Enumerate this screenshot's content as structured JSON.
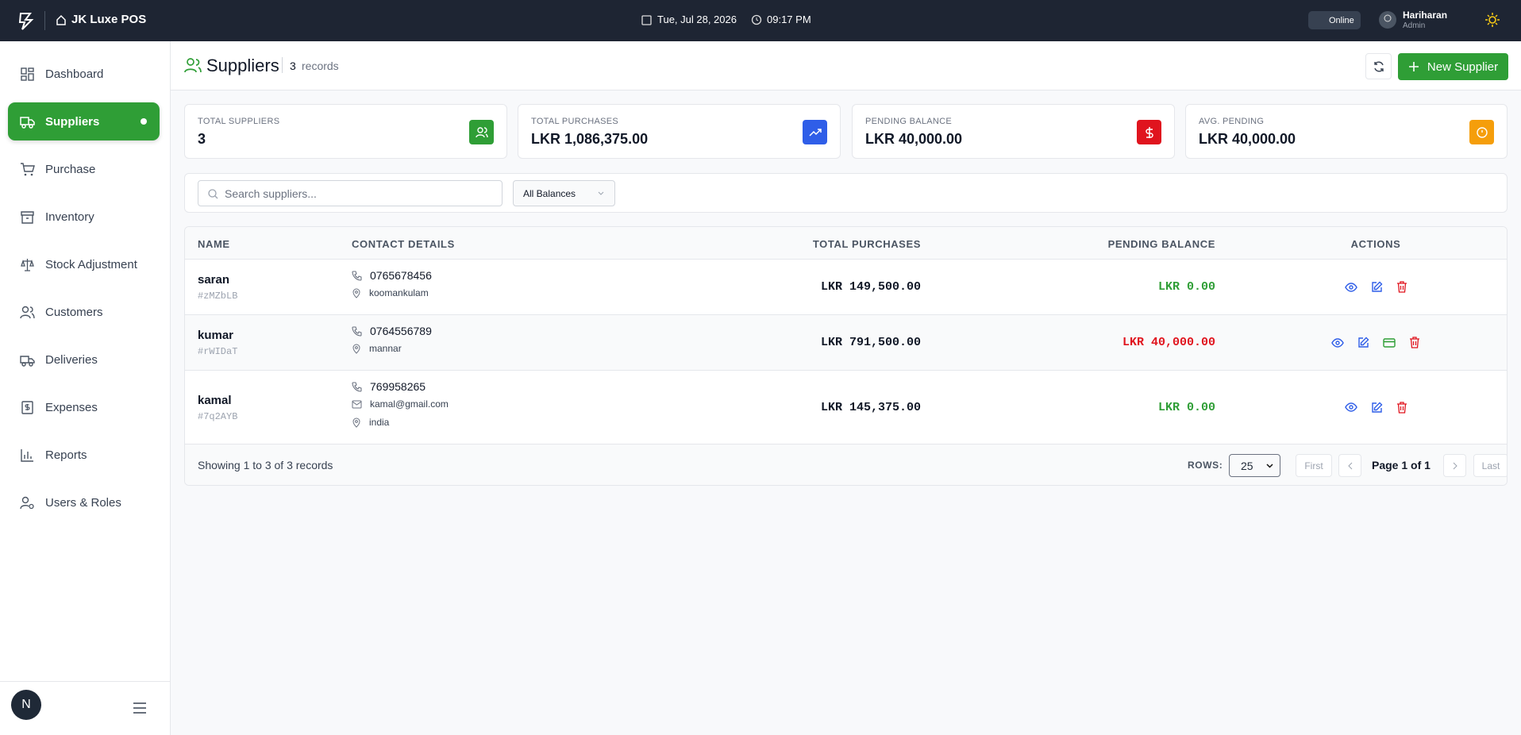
{
  "topbar": {
    "app_name": "JK Luxe POS",
    "date": "Tue, Jul 28, 2026",
    "time": "09:17 PM",
    "status": "Online",
    "user": {
      "name": "Hariharan",
      "role": "Admin"
    }
  },
  "sidebar": {
    "items": [
      "Dashboard",
      "Suppliers",
      "Purchase",
      "Inventory",
      "Stock Adjustment",
      "Customers",
      "Deliveries",
      "Expenses",
      "Reports",
      "Users & Roles"
    ],
    "avatar": "N"
  },
  "header": {
    "title": "Suppliers",
    "count": 3,
    "count_label": "records",
    "new_button": "New Supplier"
  },
  "stats": [
    {
      "label": "TOTAL SUPPLIERS",
      "value": "3"
    },
    {
      "label": "TOTAL PURCHASES",
      "value": "LKR 1,086,375.00"
    },
    {
      "label": "PENDING BALANCE",
      "value": "LKR 40,000.00"
    },
    {
      "label": "AVG. PENDING",
      "value": "LKR 40,000.00"
    }
  ],
  "filters": {
    "search_placeholder": "Search suppliers...",
    "balance_filter": "All Balances"
  },
  "table": {
    "columns": [
      "NAME",
      "CONTACT DETAILS",
      "TOTAL PURCHASES",
      "PENDING BALANCE",
      "ACTIONS"
    ],
    "rows": [
      {
        "name": "saran",
        "code": "#zMZbLB",
        "phone": "0765678456",
        "location": "koomankulam",
        "total_purchases": "LKR 149,500.00",
        "pending_balance": "LKR 0.00"
      },
      {
        "name": "kumar",
        "code": "#rWIDaT",
        "phone": "0764556789",
        "location": "mannar",
        "total_purchases": "LKR 791,500.00",
        "pending_balance": "LKR 40,000.00"
      },
      {
        "name": "kamal",
        "code": "#7q2AYB",
        "phone": "769958265",
        "email": "kamal@gmail.com",
        "location": "india",
        "total_purchases": "LKR 145,375.00",
        "pending_balance": "LKR 0.00"
      }
    ]
  },
  "pagination": {
    "summary": "Showing 1 to 3 of 3 records",
    "rows_label": "ROWS:",
    "rows_value": "25",
    "first": "First",
    "page": "Page 1 of 1",
    "last": "Last"
  }
}
